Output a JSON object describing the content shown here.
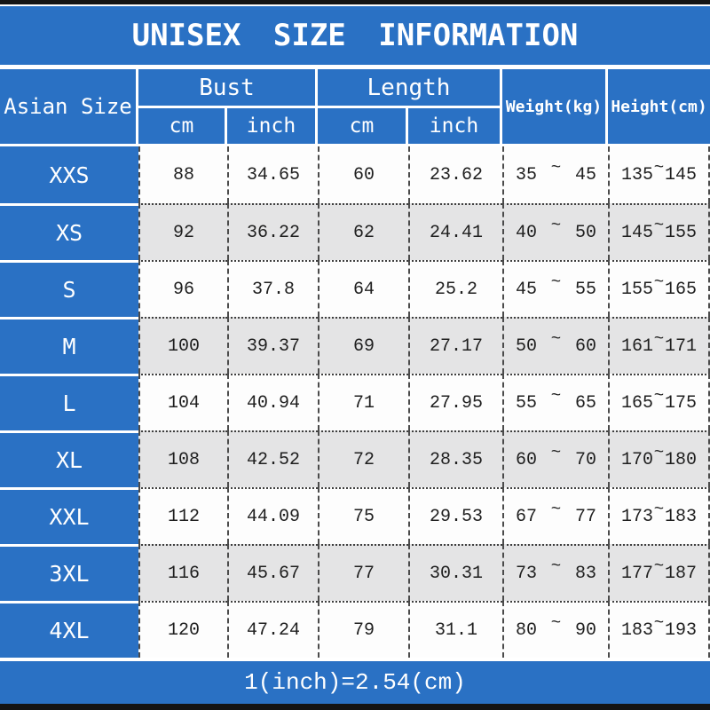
{
  "ui": {
    "title": "UNISEX SIZE INFORMATION",
    "headers": {
      "asian_size": "Asian Size",
      "bust": "Bust",
      "length": "Length",
      "weight": "Weight(kg)",
      "height": "Height(cm)",
      "cm": "cm",
      "inch": "inch"
    },
    "range_separator": "~",
    "footer_note": "1(inch)=2.54(cm)",
    "colors": {
      "accent_blue": "#2a71c4",
      "row_alt_gray": "#e4e4e5",
      "row_white": "#fdfdfd",
      "frame_black": "#141414",
      "text_white": "#ffffff"
    }
  },
  "chart_data": {
    "type": "table",
    "title": "UNISEX SIZE INFORMATION",
    "columns": [
      "Asian Size",
      "Bust cm",
      "Bust inch",
      "Length cm",
      "Length inch",
      "Weight(kg)",
      "Height(cm)"
    ],
    "footnote": "1(inch)=2.54(cm)",
    "rows": [
      {
        "size": "XXS",
        "bust_cm": "88",
        "bust_inch": "34.65",
        "length_cm": "60",
        "length_inch": "23.62",
        "weight_min": "35",
        "weight_max": "45",
        "height_min": "135",
        "height_max": "145"
      },
      {
        "size": "XS",
        "bust_cm": "92",
        "bust_inch": "36.22",
        "length_cm": "62",
        "length_inch": "24.41",
        "weight_min": "40",
        "weight_max": "50",
        "height_min": "145",
        "height_max": "155"
      },
      {
        "size": "S",
        "bust_cm": "96",
        "bust_inch": "37.8",
        "length_cm": "64",
        "length_inch": "25.2",
        "weight_min": "45",
        "weight_max": "55",
        "height_min": "155",
        "height_max": "165"
      },
      {
        "size": "M",
        "bust_cm": "100",
        "bust_inch": "39.37",
        "length_cm": "69",
        "length_inch": "27.17",
        "weight_min": "50",
        "weight_max": "60",
        "height_min": "161",
        "height_max": "171"
      },
      {
        "size": "L",
        "bust_cm": "104",
        "bust_inch": "40.94",
        "length_cm": "71",
        "length_inch": "27.95",
        "weight_min": "55",
        "weight_max": "65",
        "height_min": "165",
        "height_max": "175"
      },
      {
        "size": "XL",
        "bust_cm": "108",
        "bust_inch": "42.52",
        "length_cm": "72",
        "length_inch": "28.35",
        "weight_min": "60",
        "weight_max": "70",
        "height_min": "170",
        "height_max": "180"
      },
      {
        "size": "XXL",
        "bust_cm": "112",
        "bust_inch": "44.09",
        "length_cm": "75",
        "length_inch": "29.53",
        "weight_min": "67",
        "weight_max": "77",
        "height_min": "173",
        "height_max": "183"
      },
      {
        "size": "3XL",
        "bust_cm": "116",
        "bust_inch": "45.67",
        "length_cm": "77",
        "length_inch": "30.31",
        "weight_min": "73",
        "weight_max": "83",
        "height_min": "177",
        "height_max": "187"
      },
      {
        "size": "4XL",
        "bust_cm": "120",
        "bust_inch": "47.24",
        "length_cm": "79",
        "length_inch": "31.1",
        "weight_min": "80",
        "weight_max": "90",
        "height_min": "183",
        "height_max": "193"
      }
    ]
  }
}
